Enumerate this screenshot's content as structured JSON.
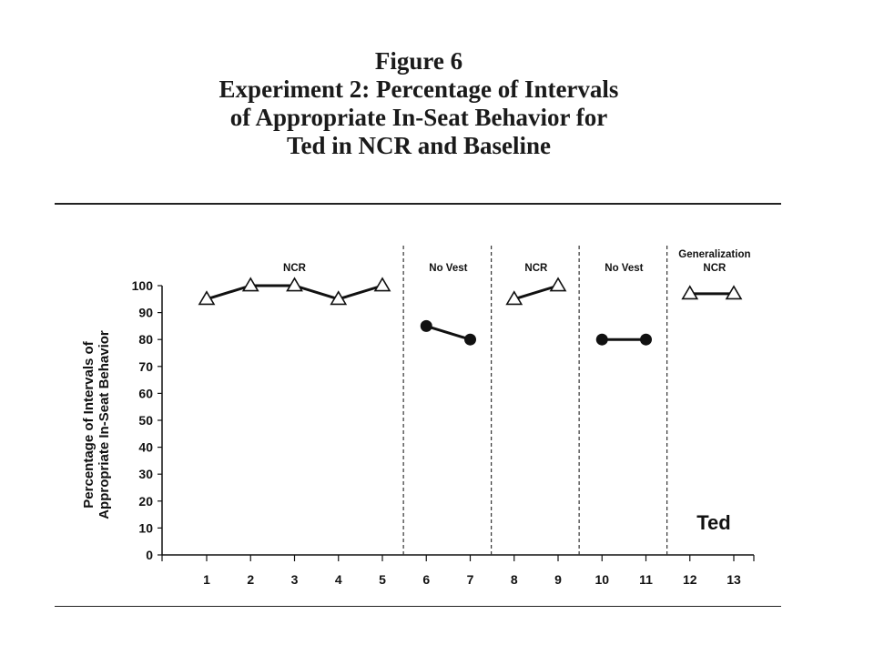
{
  "figure": {
    "title_lines": [
      "Figure 6",
      "Experiment 2: Percentage of Intervals",
      "of Appropriate In-Seat Behavior for",
      "Ted in NCR and Baseline"
    ]
  },
  "chart_data": {
    "type": "line",
    "title": "",
    "ylabel_lines": [
      "Percentage of Intervals of",
      "Appropriate In-Seat Behavior"
    ],
    "xlabel": "",
    "ylim": [
      0,
      100
    ],
    "yticks": [
      0,
      10,
      20,
      30,
      40,
      50,
      60,
      70,
      80,
      90,
      100
    ],
    "xticks": [
      1,
      2,
      3,
      4,
      5,
      6,
      7,
      8,
      9,
      10,
      11,
      12,
      13
    ],
    "participant": "Ted",
    "grid": false,
    "phases": [
      {
        "label_lines": [
          "NCR"
        ],
        "start": 1,
        "end": 5
      },
      {
        "label_lines": [
          "No Vest"
        ],
        "start": 6,
        "end": 7
      },
      {
        "label_lines": [
          "NCR"
        ],
        "start": 8,
        "end": 9
      },
      {
        "label_lines": [
          "No Vest"
        ],
        "start": 10,
        "end": 11
      },
      {
        "label_lines": [
          "Generalization",
          "NCR"
        ],
        "start": 12,
        "end": 13
      }
    ],
    "phase_change_lines": [
      5.5,
      7.5,
      9.5,
      11.5
    ],
    "segments": [
      {
        "phase": "NCR",
        "marker": "open-triangle",
        "x": [
          1,
          2,
          3,
          4,
          5
        ],
        "y": [
          95,
          100,
          100,
          95,
          100
        ]
      },
      {
        "phase": "No Vest",
        "marker": "filled-circle",
        "x": [
          6,
          7
        ],
        "y": [
          85,
          80
        ]
      },
      {
        "phase": "NCR",
        "marker": "open-triangle",
        "x": [
          8,
          9
        ],
        "y": [
          95,
          100
        ]
      },
      {
        "phase": "No Vest",
        "marker": "filled-circle",
        "x": [
          10,
          11
        ],
        "y": [
          80,
          80
        ]
      },
      {
        "phase": "Generalization NCR",
        "marker": "open-triangle",
        "x": [
          12,
          13
        ],
        "y": [
          97,
          97
        ]
      }
    ]
  }
}
